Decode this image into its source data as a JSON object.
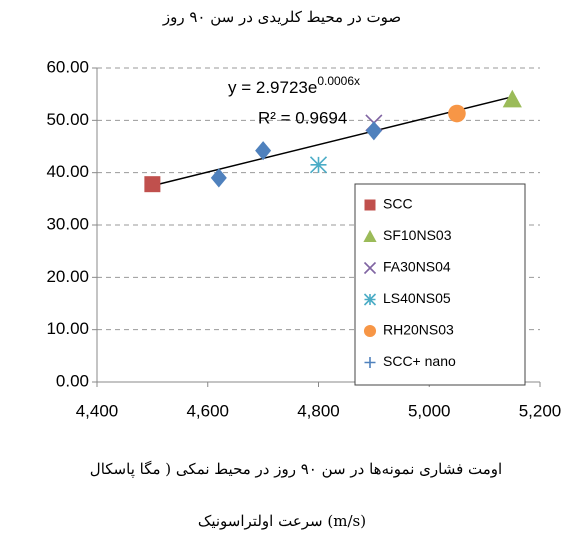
{
  "chart_data": {
    "type": "scatter",
    "title": "صوت در محیط کلریدی در سن ۹۰ روز",
    "y_label": "اومت فشاری نمونه‌ها در سن ۹۰ روز در محیط نمکی ( مگا پاسکال",
    "x_label": "سرعت اولتراسونیک (m/s)",
    "xlim": [
      4400,
      5200
    ],
    "xticks": [
      {
        "value": 4400,
        "label": "4,400"
      },
      {
        "value": 4600,
        "label": "4,600"
      },
      {
        "value": 4800,
        "label": "4,800"
      },
      {
        "value": 5000,
        "label": "5,000"
      },
      {
        "value": 5200,
        "label": "5,200"
      }
    ],
    "ylim": [
      0,
      60
    ],
    "yticks": [
      {
        "value": 0,
        "label": "0.00"
      },
      {
        "value": 10,
        "label": "10.00"
      },
      {
        "value": 20,
        "label": "20.00"
      },
      {
        "value": 30,
        "label": "30.00"
      },
      {
        "value": 40,
        "label": "40.00"
      },
      {
        "value": 50,
        "label": "50.00"
      },
      {
        "value": 60,
        "label": "60.00"
      }
    ],
    "grid": true,
    "legend": "bottom-right",
    "series": [
      {
        "name": "SCC",
        "color": "#c0504d",
        "marker": "square",
        "x": [
          4500
        ],
        "values": [
          37.8
        ]
      },
      {
        "name": "SF10NS03",
        "color": "#9bbb59",
        "marker": "triangle",
        "x": [
          5150
        ],
        "values": [
          54
        ]
      },
      {
        "name": "FA30NS04",
        "color": "#8064a2",
        "marker": "x",
        "x": [
          4900
        ],
        "values": [
          49.5
        ]
      },
      {
        "name": "LS40NS05",
        "color": "#4bacc6",
        "marker": "asterisk",
        "x": [
          4800
        ],
        "values": [
          41.5
        ]
      },
      {
        "name": "RH20NS03",
        "color": "#f79646",
        "marker": "circle",
        "x": [
          5050
        ],
        "values": [
          51.3
        ]
      },
      {
        "name": "SCC+ nano",
        "color": "#4f81bd",
        "marker": "diamond",
        "legend_marker": "plus",
        "x": [
          4620,
          4700,
          4900
        ],
        "values": [
          39,
          44.2,
          48
        ]
      }
    ],
    "trendline": {
      "color": "#000000",
      "x": [
        4500,
        5150
      ],
      "values": [
        37.5,
        54.5
      ]
    },
    "trendline_equation": {
      "base": "y = 2.9723e",
      "exponent": "0.0006x"
    },
    "r_squared": "R² = 0.9694"
  }
}
